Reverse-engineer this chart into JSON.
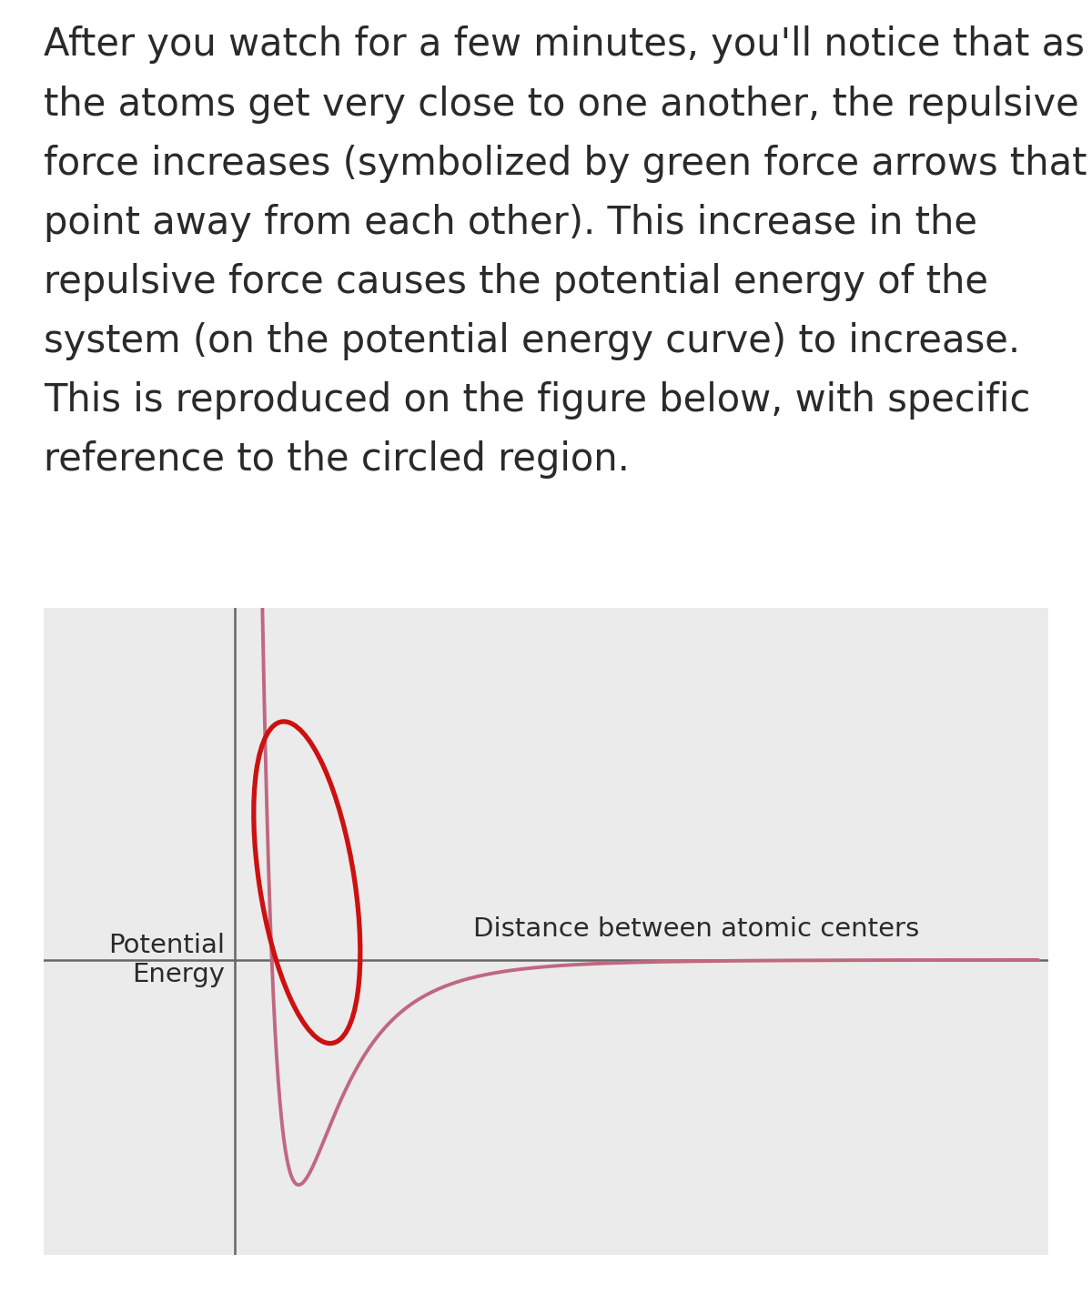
{
  "ylabel": "Potential\nEnergy",
  "xlabel": "Distance between atomic centers",
  "curve_color": "#c06880",
  "axis_color": "#666666",
  "circle_color": "#cc1111",
  "text_color": "#2a2a2a",
  "panel_background": "#ebebeb",
  "page_background": "#ffffff",
  "text_fontsize": 30,
  "label_fontsize": 21,
  "circle_linewidth": 3.8,
  "curve_linewidth": 2.8,
  "axis_linewidth": 1.8,
  "paragraph_lines": [
    "After you watch for a few minutes, you'll notice that as",
    "the atoms get very close to one another, the repulsive",
    "force increases (symbolized by green force arrows that",
    "point away from each other). This increase in the",
    "repulsive force causes the potential energy of the",
    "system (on the potential energy curve) to increase.",
    "This is reproduced on the figure below, with specific",
    "reference to the circled region."
  ]
}
